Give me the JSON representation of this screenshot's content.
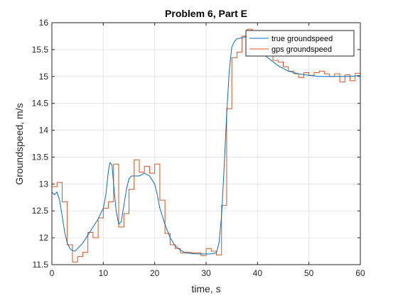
{
  "chart_data": {
    "type": "line",
    "title": "Problem 6, Part E",
    "xlabel": "time, s",
    "ylabel": "Groundspeed, m/s",
    "xlim": [
      0,
      60
    ],
    "ylim": [
      11.5,
      16
    ],
    "xticks": [
      0,
      10,
      20,
      30,
      40,
      50,
      60
    ],
    "xtick_labels": [
      "0",
      "10",
      "20",
      "30",
      "40",
      "50",
      "60"
    ],
    "yticks": [
      11.5,
      12,
      12.5,
      13,
      13.5,
      14,
      14.5,
      15,
      15.5,
      16
    ],
    "ytick_labels": [
      "11.5",
      "12",
      "12.5",
      "13",
      "13.5",
      "14",
      "14.5",
      "15",
      "15.5",
      "16"
    ],
    "grid": true,
    "legend_position": "top-right",
    "colors": {
      "true groundspeed": "#0072BD",
      "gps groundspeed": "#D95319"
    },
    "series": [
      {
        "name": "true groundspeed",
        "style": "line",
        "x": [
          0,
          0.5,
          1,
          1.5,
          2,
          2.5,
          3,
          3.5,
          4,
          4.5,
          5,
          6,
          7,
          8,
          9,
          10,
          10.5,
          11,
          11.3,
          11.7,
          12,
          12.5,
          13,
          13.5,
          14,
          14.5,
          15,
          15.5,
          16,
          17,
          18,
          19,
          20,
          20.5,
          21,
          22,
          23,
          24,
          25,
          26,
          28,
          30,
          31,
          32,
          32.5,
          33,
          33.5,
          34,
          34.5,
          35,
          35.5,
          36,
          37,
          38,
          39,
          40,
          42,
          44,
          46,
          48,
          50,
          52,
          54,
          56,
          58,
          60
        ],
        "y": [
          12.85,
          12.8,
          12.85,
          12.7,
          12.4,
          12.1,
          11.9,
          11.8,
          11.76,
          11.75,
          11.8,
          11.9,
          12.05,
          12.2,
          12.35,
          12.55,
          12.8,
          13.25,
          13.4,
          13.35,
          13.0,
          12.5,
          12.25,
          12.3,
          12.6,
          12.9,
          13.1,
          13.15,
          13.15,
          13.15,
          13.2,
          13.15,
          13.0,
          12.8,
          12.55,
          12.25,
          12.0,
          11.85,
          11.77,
          11.72,
          11.7,
          11.7,
          11.7,
          11.72,
          11.9,
          12.4,
          13.3,
          14.3,
          15.1,
          15.55,
          15.65,
          15.7,
          15.72,
          15.75,
          15.65,
          15.5,
          15.35,
          15.2,
          15.1,
          15.05,
          15.02,
          15.0,
          15.0,
          15.0,
          15.0,
          15.02
        ]
      },
      {
        "name": "gps groundspeed",
        "style": "step",
        "x": [
          0,
          1,
          2,
          3,
          4,
          5,
          6,
          7,
          8,
          9,
          10,
          11,
          12,
          13,
          14,
          15,
          16,
          17,
          18,
          19,
          20,
          21,
          22,
          23,
          24,
          25,
          26,
          27,
          28,
          29,
          30,
          31,
          32,
          33,
          34,
          35,
          36,
          37,
          38,
          39,
          40,
          41,
          42,
          43,
          44,
          45,
          46,
          47,
          48,
          49,
          50,
          51,
          52,
          53,
          54,
          55,
          56,
          57,
          58,
          59,
          60
        ],
        "y": [
          12.95,
          13.03,
          12.67,
          11.87,
          11.55,
          11.65,
          11.73,
          12.1,
          12.0,
          12.37,
          12.55,
          12.67,
          13.37,
          12.2,
          12.45,
          12.9,
          13.45,
          13.22,
          13.33,
          13.2,
          13.37,
          12.7,
          12.08,
          11.87,
          11.8,
          11.72,
          11.73,
          11.72,
          11.72,
          11.67,
          11.8,
          11.75,
          11.68,
          12.6,
          14.4,
          15.35,
          15.45,
          15.75,
          15.88,
          15.75,
          15.62,
          15.67,
          15.47,
          15.3,
          15.27,
          15.18,
          15.1,
          15.05,
          14.98,
          15.07,
          15.02,
          15.07,
          15.1,
          15.05,
          15.0,
          15.05,
          14.9,
          15.03,
          14.92,
          15.06,
          15.06
        ]
      }
    ]
  }
}
